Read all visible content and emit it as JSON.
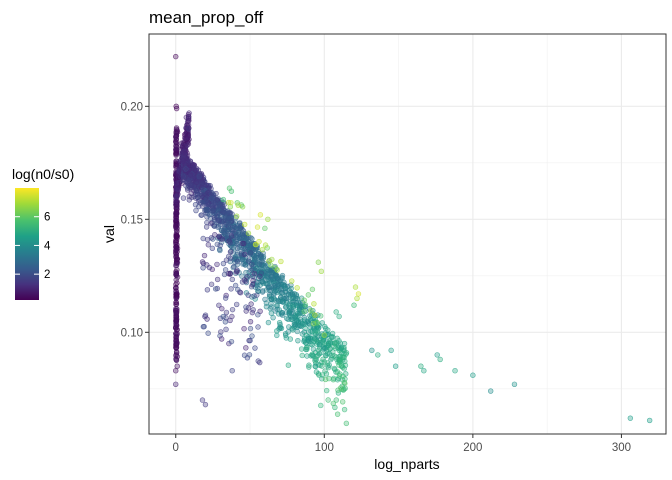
{
  "chart_data": {
    "type": "scatter",
    "title": "mean_prop_off",
    "xlabel": "log_nparts",
    "ylabel": "val",
    "xlim": [
      -18,
      330
    ],
    "ylim": [
      0.055,
      0.232
    ],
    "x_ticks": [
      0,
      100,
      200,
      300
    ],
    "x_tick_labels": [
      "0",
      "100",
      "200",
      "300"
    ],
    "y_ticks": [
      0.1,
      0.15,
      0.2
    ],
    "y_tick_labels": [
      "0.10",
      "0.15",
      "0.20"
    ],
    "grid": true,
    "theme": "bw",
    "point_alpha": 0.35,
    "color_scale": {
      "name": "viridis",
      "title": "log(n0/s0)",
      "range": [
        0.2,
        8.0
      ],
      "breaks": [
        2,
        4,
        6
      ],
      "break_labels": [
        "2",
        "4",
        "6"
      ],
      "position": "left"
    },
    "notable_points": [
      {
        "x": 0.0,
        "y": 0.222,
        "c": 0.3
      },
      {
        "x": 0.3,
        "y": 0.2,
        "c": 0.3
      },
      {
        "x": 0.6,
        "y": 0.199,
        "c": 0.3
      },
      {
        "x": 306,
        "y": 0.062,
        "c": 4.5
      },
      {
        "x": 319,
        "y": 0.061,
        "c": 4.5
      },
      {
        "x": 228,
        "y": 0.077,
        "c": 4.2
      },
      {
        "x": 212,
        "y": 0.074,
        "c": 4.0
      },
      {
        "x": 200,
        "y": 0.081,
        "c": 4.5
      },
      {
        "x": 188,
        "y": 0.083,
        "c": 4.8
      },
      {
        "x": 178,
        "y": 0.088,
        "c": 5.0
      },
      {
        "x": 176,
        "y": 0.09,
        "c": 4.5
      },
      {
        "x": 167,
        "y": 0.083,
        "c": 4.8
      },
      {
        "x": 165,
        "y": 0.085,
        "c": 5.0
      },
      {
        "x": 148,
        "y": 0.085,
        "c": 4.5
      },
      {
        "x": 145,
        "y": 0.092,
        "c": 4.5
      },
      {
        "x": 136,
        "y": 0.09,
        "c": 5.0
      },
      {
        "x": 132,
        "y": 0.092,
        "c": 4.2
      },
      {
        "x": 121,
        "y": 0.12,
        "c": 7.0
      },
      {
        "x": 123,
        "y": 0.117,
        "c": 7.5
      },
      {
        "x": 122,
        "y": 0.115,
        "c": 7.0
      },
      {
        "x": 120,
        "y": 0.112,
        "c": 5.5
      },
      {
        "x": 110,
        "y": 0.107,
        "c": 5.0
      },
      {
        "x": 108,
        "y": 0.109,
        "c": 5.0
      },
      {
        "x": 96,
        "y": 0.131,
        "c": 6.5
      },
      {
        "x": 98,
        "y": 0.127,
        "c": 6.8
      },
      {
        "x": 92,
        "y": 0.119,
        "c": 6.0
      },
      {
        "x": 57,
        "y": 0.152,
        "c": 7.5
      },
      {
        "x": 62,
        "y": 0.15,
        "c": 6.8
      },
      {
        "x": 60,
        "y": 0.146,
        "c": 6.0
      },
      {
        "x": 18,
        "y": 0.07,
        "c": 1.5
      },
      {
        "x": 20,
        "y": 0.068,
        "c": 1.5
      },
      {
        "x": 0,
        "y": 0.077,
        "c": 1.0
      },
      {
        "x": 0,
        "y": 0.083,
        "c": 0.5
      },
      {
        "x": 1,
        "y": 0.085,
        "c": 0.5
      },
      {
        "x": 38,
        "y": 0.083,
        "c": 1.8
      }
    ]
  }
}
